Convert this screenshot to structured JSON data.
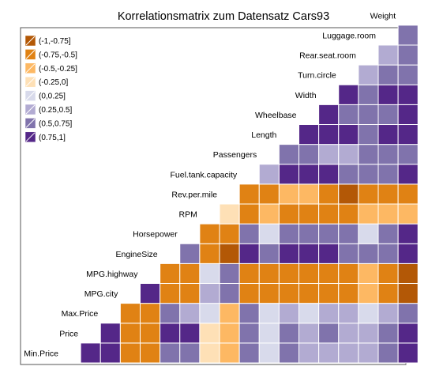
{
  "chart_data": {
    "type": "heatmap",
    "title": "Korrelationsmatrix zum Datensatz Cars93",
    "variables": [
      "Min.Price",
      "Price",
      "Max.Price",
      "MPG.city",
      "MPG.highway",
      "EngineSize",
      "Horsepower",
      "RPM",
      "Rev.per.mile",
      "Fuel.tank.capacity",
      "Passengers",
      "Length",
      "Wheelbase",
      "Width",
      "Turn.circle",
      "Rear.seat.room",
      "Luggage.room",
      "Weight"
    ],
    "legend": {
      "position": "top-left",
      "bins": [
        {
          "label": "(-1,-0.75]",
          "color": "#b35806"
        },
        {
          "label": "(-0.75,-0.5]",
          "color": "#e08214"
        },
        {
          "label": "(-0.5,-0.25]",
          "color": "#fdb863"
        },
        {
          "label": "(-0.25,0]",
          "color": "#fee0b6"
        },
        {
          "label": "(0,0.25]",
          "color": "#d8daeb"
        },
        {
          "label": "(0.25,0.5]",
          "color": "#b2abd2"
        },
        {
          "label": "(0.5,0.75]",
          "color": "#8073ac"
        },
        {
          "label": "(0.75,1]",
          "color": "#542788"
        }
      ]
    },
    "cell_bins": [
      [
        7
      ],
      [
        7,
        7
      ],
      [
        1,
        1,
        1
      ],
      [
        1,
        1,
        1,
        7
      ],
      [
        6,
        7,
        6,
        1,
        1
      ],
      [
        6,
        7,
        5,
        1,
        1,
        6
      ],
      [
        3,
        3,
        4,
        5,
        4,
        1,
        1
      ],
      [
        2,
        2,
        2,
        6,
        6,
        0,
        1,
        3
      ],
      [
        6,
        6,
        6,
        1,
        1,
        7,
        6,
        1,
        1
      ],
      [
        4,
        4,
        4,
        1,
        1,
        6,
        4,
        2,
        1,
        5
      ],
      [
        6,
        6,
        5,
        1,
        1,
        7,
        6,
        1,
        2,
        7,
        6
      ],
      [
        5,
        5,
        4,
        1,
        1,
        7,
        6,
        1,
        2,
        7,
        6,
        7
      ],
      [
        5,
        6,
        5,
        1,
        1,
        7,
        6,
        1,
        1,
        7,
        5,
        7,
        7
      ],
      [
        5,
        5,
        5,
        1,
        1,
        6,
        6,
        1,
        0,
        6,
        5,
        7,
        6,
        7
      ],
      [
        5,
        5,
        4,
        2,
        2,
        6,
        4,
        2,
        1,
        6,
        6,
        6,
        6,
        6,
        5
      ],
      [
        6,
        6,
        5,
        1,
        1,
        6,
        6,
        2,
        1,
        6,
        6,
        7,
        6,
        7,
        6,
        5
      ],
      [
        7,
        7,
        6,
        0,
        0,
        7,
        7,
        2,
        1,
        7,
        6,
        7,
        7,
        7,
        6,
        6,
        6
      ]
    ]
  }
}
